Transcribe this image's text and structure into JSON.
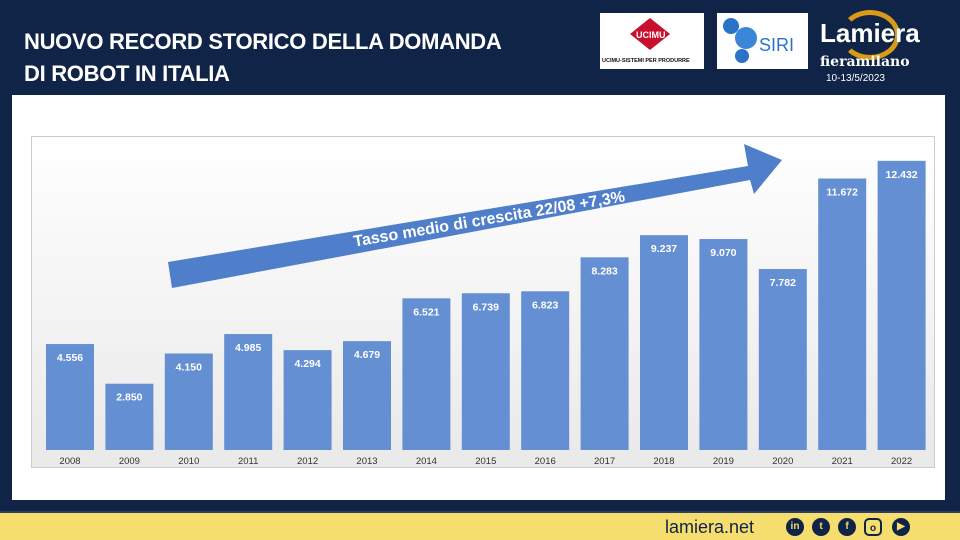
{
  "header": {
    "title_line1": "NUOVO RECORD STORICO DELLA DOMANDA",
    "title_line2": "DI ROBOT IN ITALIA",
    "date": "10-13/5/2023"
  },
  "logos": {
    "ucimu": "UCIMU",
    "ucimu_sub": "UCIMU-SISTEMI PER PRODURRE",
    "siri": "SIRI",
    "lamiera": "Lamiera",
    "fieramilano": "fieramilano"
  },
  "footer": {
    "site": "lamiera.net",
    "social": [
      "linkedin-icon",
      "twitter-icon",
      "facebook-icon",
      "instagram-icon",
      "youtube-icon"
    ]
  },
  "colors": {
    "bar": "#658fd3",
    "arrow": "#4f7ecb",
    "header": "#0f2447",
    "footer": "#f5dd6e"
  },
  "chart_data": {
    "type": "bar",
    "title": "",
    "xlabel": "",
    "ylabel": "",
    "ylim": [
      0,
      13500
    ],
    "grid": false,
    "categories": [
      "2008",
      "2009",
      "2010",
      "2011",
      "2012",
      "2013",
      "2014",
      "2015",
      "2016",
      "2017",
      "2018",
      "2019",
      "2020",
      "2021",
      "2022"
    ],
    "values": [
      4556,
      2850,
      4150,
      4985,
      4294,
      4679,
      6521,
      6739,
      6823,
      8283,
      9237,
      9070,
      7782,
      11672,
      12432
    ],
    "labels": [
      "4.556",
      "2.850",
      "4.150",
      "4.985",
      "4.294",
      "4.679",
      "6.521",
      "6.739",
      "6.823",
      "8.283",
      "9.237",
      "9.070",
      "7.782",
      "11.672",
      "12.432"
    ],
    "annotation": "Tasso medio di crescita 22/08  +7,3%"
  }
}
